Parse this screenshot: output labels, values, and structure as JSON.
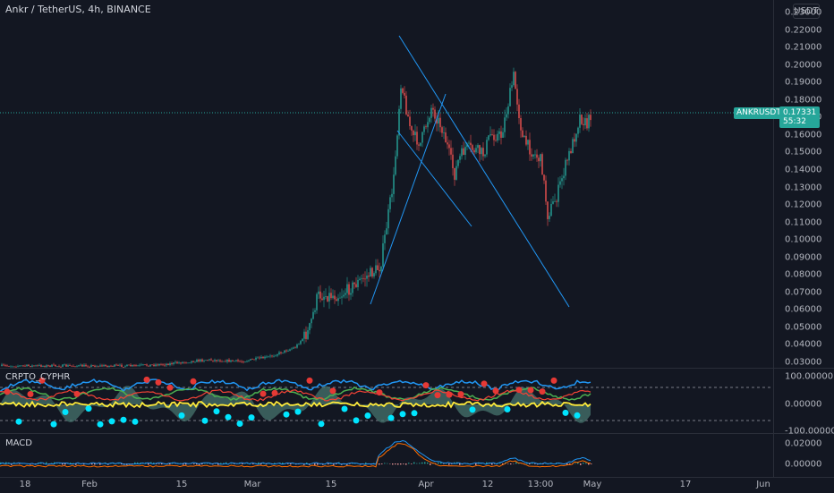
{
  "header": {
    "symbol_title": "Ankr / TetherUS, 4h, BINANCE",
    "currency_button": "USDT"
  },
  "price_axis": {
    "labels": [
      "0.23000",
      "0.22000",
      "0.21000",
      "0.20000",
      "0.19000",
      "0.18000",
      "0.17000",
      "0.16000",
      "0.15000",
      "0.14000",
      "0.13000",
      "0.12000",
      "0.11000",
      "0.10000",
      "0.09000",
      "0.08000",
      "0.07000",
      "0.06000",
      "0.05000",
      "0.04000",
      "0.03000"
    ],
    "symbol_tag": "ANKRUSDT",
    "last_price": "0.17331",
    "countdown": "55:32"
  },
  "osc_pane": {
    "title": "CRPTO_CYPHR",
    "labels": [
      "100.00000",
      "0.00000",
      "-100.00000"
    ]
  },
  "macd_pane": {
    "title": "MACD",
    "labels": [
      "0.02000",
      "0.00000"
    ]
  },
  "time_axis": {
    "labels": [
      "18",
      "Feb",
      "15",
      "Mar",
      "15",
      "Apr",
      "12",
      "13:00",
      "May",
      "17",
      "Jun"
    ]
  },
  "colors": {
    "up": "#26a69a",
    "down": "#ef5350",
    "trendline": "#2196f3",
    "bg": "#131722"
  }
}
